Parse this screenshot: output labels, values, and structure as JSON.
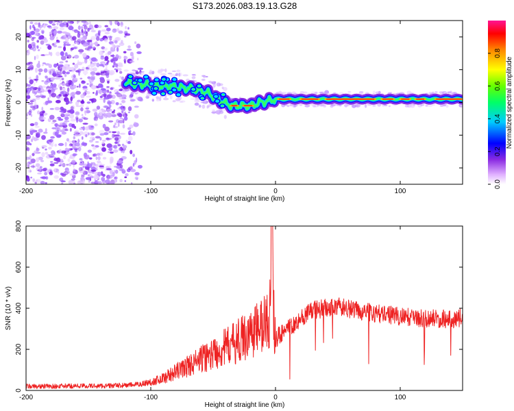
{
  "title": "S173.2026.083.19.13.G28",
  "chart_data": [
    {
      "type": "heatmap",
      "xlabel": "Height of straight line (km)",
      "ylabel": "Frequency (Hz)",
      "xlim": [
        -200,
        150
      ],
      "ylim": [
        -25,
        25
      ],
      "xticks": [
        -200,
        -100,
        0,
        100
      ],
      "yticks": [
        20,
        10,
        0,
        -10,
        -20
      ],
      "colorbar": {
        "label": "Normalized spectral amplitude",
        "range": [
          0,
          1
        ],
        "ticks": [
          "0.0",
          "0.2",
          "0.4",
          "0.6",
          "0.8"
        ]
      },
      "ridge": [
        {
          "x": -120,
          "y": 6
        },
        {
          "x": -105,
          "y": 5.5
        },
        {
          "x": -95,
          "y": 5
        },
        {
          "x": -85,
          "y": 5
        },
        {
          "x": -75,
          "y": 4.5
        },
        {
          "x": -65,
          "y": 4
        },
        {
          "x": -55,
          "y": 3
        },
        {
          "x": -48,
          "y": 1.5
        },
        {
          "x": -42,
          "y": 0
        },
        {
          "x": -35,
          "y": -1
        },
        {
          "x": -28,
          "y": -1
        },
        {
          "x": -20,
          "y": -1
        },
        {
          "x": -12,
          "y": 0
        },
        {
          "x": -5,
          "y": 0.5
        },
        {
          "x": 0,
          "y": 1
        },
        {
          "x": 20,
          "y": 1
        },
        {
          "x": 60,
          "y": 1
        },
        {
          "x": 100,
          "y": 1
        },
        {
          "x": 150,
          "y": 1
        }
      ]
    },
    {
      "type": "line",
      "xlabel": "Height of straight line (km)",
      "ylabel": "SNR (10 * v/v)",
      "xlim": [
        -200,
        150
      ],
      "ylim": [
        0,
        800
      ],
      "xticks": [
        -200,
        -100,
        0,
        100
      ],
      "yticks": [
        0,
        200,
        400,
        600,
        800
      ],
      "series": [
        {
          "name": "SNR",
          "color": "#ee2222",
          "x": [
            -200,
            -180,
            -160,
            -140,
            -120,
            -110,
            -100,
            -90,
            -80,
            -70,
            -60,
            -50,
            -40,
            -30,
            -20,
            -10,
            -5,
            -3,
            -1,
            0,
            5,
            10,
            20,
            30,
            40,
            50,
            60,
            70,
            80,
            90,
            100,
            110,
            120,
            130,
            140,
            150
          ],
          "values": [
            20,
            20,
            22,
            22,
            25,
            30,
            40,
            60,
            90,
            120,
            150,
            180,
            210,
            240,
            280,
            320,
            350,
            800,
            300,
            250,
            280,
            300,
            350,
            390,
            400,
            410,
            395,
            385,
            375,
            370,
            360,
            355,
            350,
            350,
            345,
            355
          ]
        }
      ]
    }
  ]
}
